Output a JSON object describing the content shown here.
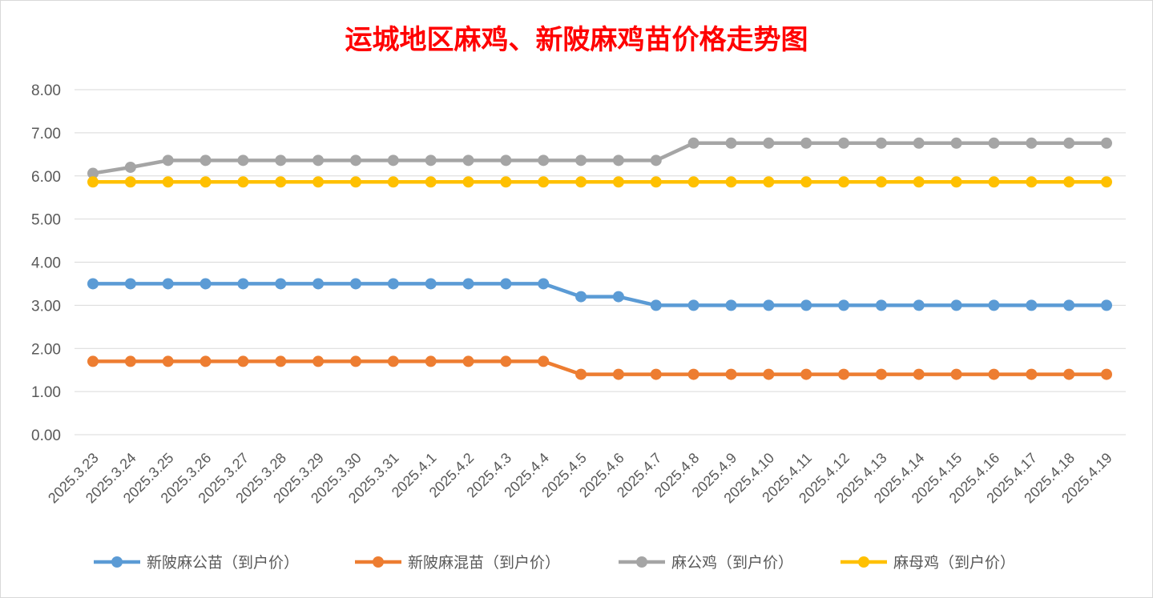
{
  "chart_data": {
    "type": "line",
    "title": "运城地区麻鸡、新陂麻鸡苗价格走势图",
    "xlabel": "",
    "ylabel": "",
    "ylim": [
      0,
      8
    ],
    "y_ticks": [
      "0.00",
      "1.00",
      "2.00",
      "3.00",
      "4.00",
      "5.00",
      "6.00",
      "7.00",
      "8.00"
    ],
    "grid": true,
    "legend_position": "bottom",
    "categories": [
      "2025.3.23",
      "2025.3.24",
      "2025.3.25",
      "2025.3.26",
      "2025.3.27",
      "2025.3.28",
      "2025.3.29",
      "2025.3.30",
      "2025.3.31",
      "2025.4.1",
      "2025.4.2",
      "2025.4.3",
      "2025.4.4",
      "2025.4.5",
      "2025.4.6",
      "2025.4.7",
      "2025.4.8",
      "2025.4.9",
      "2025.4.10",
      "2025.4.11",
      "2025.4.12",
      "2025.4.13",
      "2025.4.14",
      "2025.4.15",
      "2025.4.16",
      "2025.4.17",
      "2025.4.18",
      "2025.4.19"
    ],
    "series": [
      {
        "name": "新陂麻公苗（到户价）",
        "color": "#5b9bd5",
        "values": [
          3.5,
          3.5,
          3.5,
          3.5,
          3.5,
          3.5,
          3.5,
          3.5,
          3.5,
          3.5,
          3.5,
          3.5,
          3.5,
          3.2,
          3.2,
          3.0,
          3.0,
          3.0,
          3.0,
          3.0,
          3.0,
          3.0,
          3.0,
          3.0,
          3.0,
          3.0,
          3.0,
          3.0
        ]
      },
      {
        "name": "新陂麻混苗（到户价）",
        "color": "#ed7d31",
        "values": [
          1.7,
          1.7,
          1.7,
          1.7,
          1.7,
          1.7,
          1.7,
          1.7,
          1.7,
          1.7,
          1.7,
          1.7,
          1.7,
          1.4,
          1.4,
          1.4,
          1.4,
          1.4,
          1.4,
          1.4,
          1.4,
          1.4,
          1.4,
          1.4,
          1.4,
          1.4,
          1.4,
          1.4
        ]
      },
      {
        "name": "麻公鸡（到户价）",
        "color": "#a5a5a5",
        "values": [
          6.06,
          6.2,
          6.36,
          6.36,
          6.36,
          6.36,
          6.36,
          6.36,
          6.36,
          6.36,
          6.36,
          6.36,
          6.36,
          6.36,
          6.36,
          6.36,
          6.76,
          6.76,
          6.76,
          6.76,
          6.76,
          6.76,
          6.76,
          6.76,
          6.76,
          6.76,
          6.76,
          6.76
        ]
      },
      {
        "name": "麻母鸡（到户价）",
        "color": "#ffc000",
        "values": [
          5.86,
          5.86,
          5.86,
          5.86,
          5.86,
          5.86,
          5.86,
          5.86,
          5.86,
          5.86,
          5.86,
          5.86,
          5.86,
          5.86,
          5.86,
          5.86,
          5.86,
          5.86,
          5.86,
          5.86,
          5.86,
          5.86,
          5.86,
          5.86,
          5.86,
          5.86,
          5.86,
          5.86
        ]
      }
    ]
  }
}
